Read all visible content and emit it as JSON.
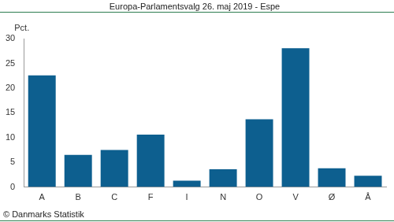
{
  "chart_data": {
    "type": "bar",
    "title": "Europa-Parlamentsvalg 26. maj 2019 - Espe",
    "y_label": "Pct.",
    "categories": [
      "A",
      "B",
      "C",
      "F",
      "I",
      "N",
      "O",
      "V",
      "Ø",
      "Å"
    ],
    "values": [
      22.6,
      6.5,
      7.5,
      10.6,
      1.3,
      3.6,
      13.7,
      28.1,
      3.8,
      2.3
    ],
    "color": "#0d5f8f",
    "ylim": [
      0,
      30
    ],
    "yticks": [
      0,
      5,
      10,
      15,
      20,
      25,
      30
    ],
    "grid": false,
    "annotations": [
      "© Danmarks Statistik"
    ]
  }
}
